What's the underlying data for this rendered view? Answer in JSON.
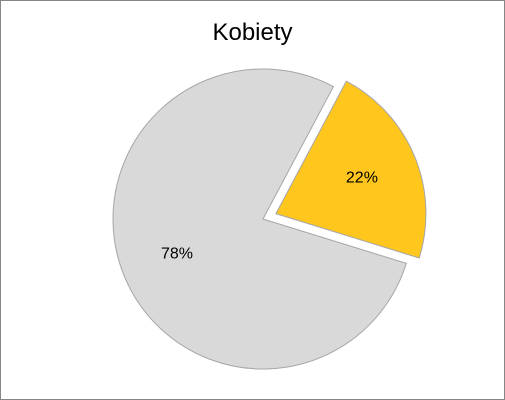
{
  "chart_data": {
    "type": "pie",
    "title": "Kobiety",
    "slices": [
      {
        "label": "22%",
        "value": 22,
        "color": "#FFC61E",
        "exploded": true
      },
      {
        "label": "78%",
        "value": 78,
        "color": "#D9D9D9",
        "exploded": false
      }
    ],
    "start_angle_deg": 28,
    "stroke_color": "#A6A6A6",
    "legend": "none"
  }
}
